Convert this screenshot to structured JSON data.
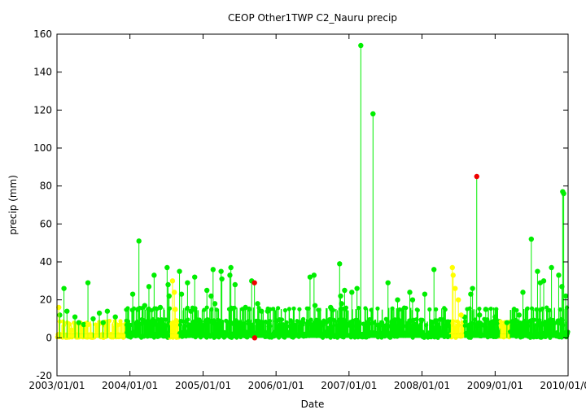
{
  "chart_data": {
    "type": "scatter",
    "title": "CEOP Other1TWP C2_Nauru  precip",
    "xlabel": "Date",
    "ylabel": "precip (mm)",
    "xlim": [
      "2003/01/01",
      "2010/01/01"
    ],
    "ylim": [
      -20,
      160
    ],
    "x_tick_labels": [
      "2003/01/01",
      "2004/01/01",
      "2005/01/01",
      "2006/01/01",
      "2007/01/01",
      "2008/01/01",
      "2009/01/01",
      "2010/01/01"
    ],
    "y_tick_labels": [
      "-20",
      "0",
      "20",
      "40",
      "60",
      "80",
      "100",
      "120",
      "140",
      "160"
    ],
    "y_ticks": [
      -20,
      0,
      20,
      40,
      60,
      80,
      100,
      120,
      140,
      160
    ],
    "grid": false,
    "legend": "none",
    "colors": {
      "good": "#00ee00",
      "questionable": "#ffff00",
      "bad": "#ee0000",
      "frame": "#000000"
    },
    "series": [
      {
        "flag": "good",
        "color": "#00ee00",
        "x": [
          "2003/01/15",
          "2003/02/05",
          "2003/02/20",
          "2003/04/01",
          "2003/04/20",
          "2003/05/15",
          "2003/06/05",
          "2003/07/01",
          "2003/08/01",
          "2003/08/20",
          "2003/09/10",
          "2003/10/20",
          "2004/01/15",
          "2004/02/10",
          "2004/02/15",
          "2004/03/15",
          "2004/04/05",
          "2004/05/01",
          "2004/05/05",
          "2004/06/01",
          "2004/07/05",
          "2004/07/10",
          "2004/07/15",
          "2004/09/05",
          "2004/09/15",
          "2004/10/15",
          "2004/11/01",
          "2004/11/20",
          "2005/01/20",
          "2005/02/10",
          "2005/02/20",
          "2005/03/01",
          "2005/04/01",
          "2005/04/05",
          "2005/05/15",
          "2005/05/20",
          "2005/06/10",
          "2005/08/01",
          "2005/09/01",
          "2005/10/01",
          "2005/10/20",
          "2005/11/20",
          "2006/06/20",
          "2006/07/10",
          "2006/07/15",
          "2006/10/01",
          "2006/11/15",
          "2006/11/20",
          "2006/11/25",
          "2006/12/10",
          "2007/01/15",
          "2007/02/10",
          "2007/03/01",
          "2007/05/01",
          "2007/07/15",
          "2007/09/01",
          "2007/11/01",
          "2007/11/15",
          "2008/01/15",
          "2008/03/01",
          "2008/08/01",
          "2008/09/01",
          "2008/09/10",
          "2008/10/15",
          "2008/11/15",
          "2009/01/01",
          "2009/03/01",
          "2009/05/01",
          "2009/05/20",
          "2009/07/01",
          "2009/08/01",
          "2009/08/15",
          "2009/09/01",
          "2009/10/10",
          "2009/11/15",
          "2009/12/01",
          "2009/12/05",
          "2009/12/10",
          "2009/12/20"
        ],
        "y": [
          12,
          26,
          14,
          11,
          8,
          7,
          29,
          10,
          13,
          8,
          14,
          11,
          23,
          15,
          51,
          17,
          27,
          33,
          8,
          16,
          37,
          28,
          22,
          35,
          23,
          29,
          14,
          32,
          25,
          22,
          36,
          18,
          35,
          31,
          33,
          37,
          28,
          16,
          30,
          18,
          14,
          14,
          32,
          33,
          17,
          16,
          39,
          22,
          18,
          25,
          24,
          26,
          154,
          118,
          29,
          20,
          24,
          20,
          23,
          36,
          11,
          23,
          26,
          12,
          15,
          11,
          8,
          12,
          24,
          52,
          35,
          29,
          30,
          37,
          33,
          27,
          77,
          76,
          22
        ]
      },
      {
        "flag": "questionable",
        "color": "#ffff00",
        "x": [
          "2003/01/10",
          "2003/03/15",
          "2003/06/05",
          "2004/08/01",
          "2004/08/10",
          "2004/08/15",
          "2004/08/20",
          "2008/06/01",
          "2008/06/05",
          "2008/06/15",
          "2008/07/01",
          "2008/07/15",
          "2009/02/01"
        ],
        "y": [
          16,
          4,
          7,
          30,
          24,
          15,
          9,
          37,
          33,
          26,
          20,
          12,
          6
        ]
      },
      {
        "flag": "bad",
        "color": "#ee0000",
        "x": [
          "2005/09/15",
          "2005/09/16",
          "2008/10/01"
        ],
        "y": [
          29,
          0,
          85
        ]
      }
    ]
  }
}
